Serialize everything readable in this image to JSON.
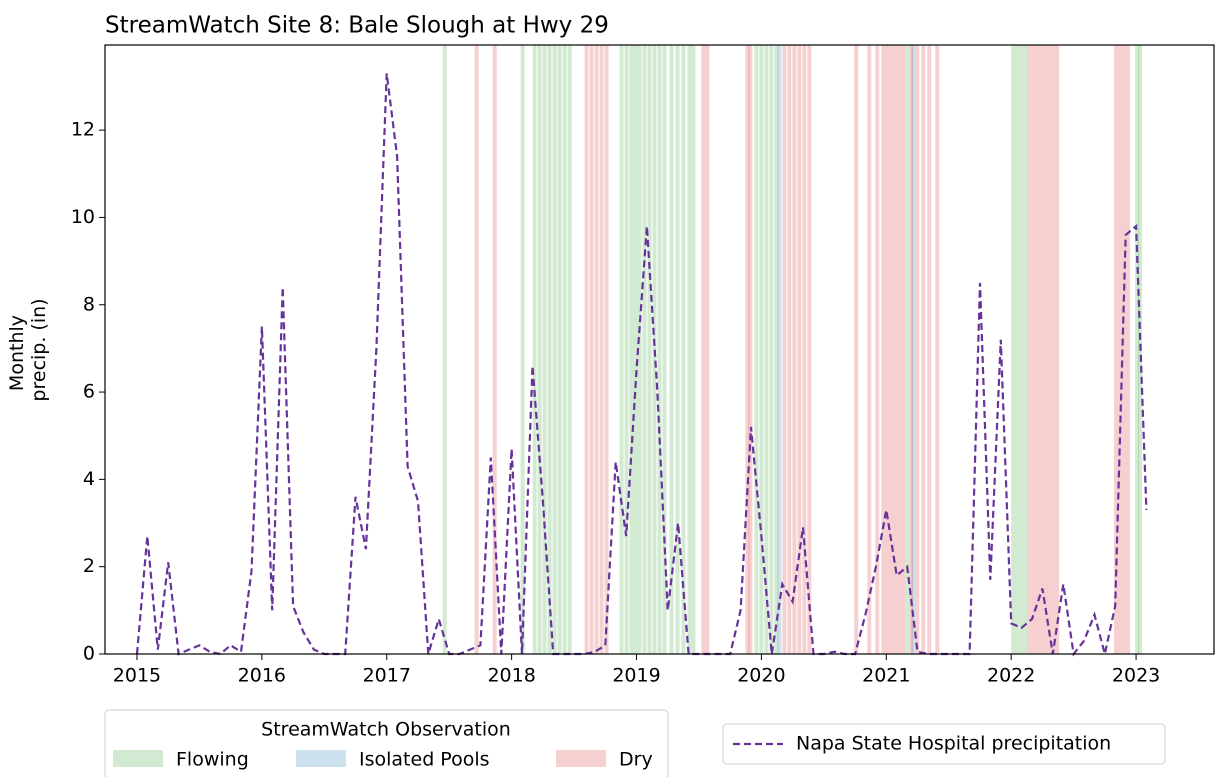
{
  "chart_data": {
    "type": "line",
    "title": "StreamWatch Site 8: Bale Slough at Hwy 29",
    "ylabel": [
      "Monthly",
      "precip. (in)"
    ],
    "xlim": [
      2014.744,
      2023.624
    ],
    "xticks": [
      2015,
      2016,
      2017,
      2018,
      2019,
      2020,
      2021,
      2022,
      2023
    ],
    "ylim": [
      0,
      13.95
    ],
    "yticks": [
      0,
      2,
      4,
      6,
      8,
      10,
      12
    ],
    "series": [
      {
        "name": "Napa State Hospital precipitation",
        "color": "#663399",
        "dashed": true,
        "x": [
          2015.0,
          2015.083,
          2015.167,
          2015.25,
          2015.333,
          2015.417,
          2015.5,
          2015.583,
          2015.667,
          2015.75,
          2015.833,
          2015.917,
          2016.0,
          2016.083,
          2016.167,
          2016.25,
          2016.333,
          2016.417,
          2016.5,
          2016.583,
          2016.667,
          2016.75,
          2016.833,
          2016.917,
          2017.0,
          2017.083,
          2017.167,
          2017.25,
          2017.333,
          2017.417,
          2017.5,
          2017.583,
          2017.667,
          2017.75,
          2017.833,
          2017.917,
          2018.0,
          2018.083,
          2018.167,
          2018.25,
          2018.333,
          2018.417,
          2018.5,
          2018.583,
          2018.667,
          2018.75,
          2018.833,
          2018.917,
          2019.0,
          2019.083,
          2019.167,
          2019.25,
          2019.333,
          2019.417,
          2019.5,
          2019.583,
          2019.667,
          2019.75,
          2019.833,
          2019.917,
          2020.0,
          2020.083,
          2020.167,
          2020.25,
          2020.333,
          2020.417,
          2020.5,
          2020.583,
          2020.667,
          2020.75,
          2020.833,
          2020.917,
          2021.0,
          2021.083,
          2021.167,
          2021.25,
          2021.333,
          2021.417,
          2021.5,
          2021.583,
          2021.667,
          2021.75,
          2021.833,
          2021.917,
          2022.0,
          2022.083,
          2022.167,
          2022.25,
          2022.333,
          2022.417,
          2022.5,
          2022.583,
          2022.667,
          2022.75,
          2022.833,
          2022.917,
          2023.0,
          2023.083
        ],
        "values": [
          0,
          2.7,
          0.1,
          2.1,
          0,
          0.1,
          0.2,
          0.05,
          0,
          0.2,
          0.05,
          1.9,
          7.5,
          1.0,
          8.4,
          1.1,
          0.5,
          0.1,
          0,
          0,
          0,
          3.6,
          2.4,
          7.0,
          13.3,
          11.4,
          4.3,
          3.5,
          0,
          0.8,
          0,
          0,
          0.1,
          0.2,
          4.5,
          0,
          4.7,
          0,
          6.6,
          3.5,
          0,
          0,
          0,
          0,
          0.05,
          0.2,
          4.4,
          2.7,
          6.5,
          9.8,
          6.0,
          1.0,
          3.0,
          0,
          0,
          0,
          0,
          0,
          1.0,
          5.2,
          2.7,
          0,
          1.6,
          1.2,
          2.9,
          0,
          0,
          0.05,
          0,
          0,
          0.9,
          2.0,
          3.3,
          1.8,
          2.0,
          0.05,
          0,
          0,
          0,
          0,
          0,
          8.5,
          1.7,
          7.2,
          0.7,
          0.6,
          0.8,
          1.5,
          0,
          1.6,
          0,
          0.3,
          0.9,
          0,
          1.1,
          9.6,
          9.8,
          3.3
        ]
      }
    ],
    "observations": {
      "title": "StreamWatch Observation",
      "groups": [
        {
          "name": "Flowing",
          "color": "#2ca02c",
          "x": [
            2017.464,
            2018.088,
            2018.184,
            2018.224,
            2018.264,
            2018.304,
            2018.344,
            2018.384,
            2018.424,
            2018.464,
            2018.88,
            2018.92,
            2018.96,
            2018.992,
            2019.024,
            2019.064,
            2019.104,
            2019.144,
            2019.184,
            2019.224,
            2019.28,
            2019.328,
            2019.376,
            2019.424,
            2019.456,
            2019.96,
            2020.0,
            2020.04,
            2020.08,
            2020.12,
            2021.168,
            2022.016,
            2022.048,
            2022.08,
            2022.112,
            2023.008,
            2023.032
          ]
        },
        {
          "name": "Isolated Pools",
          "color": "#1f77b4",
          "x": [
            2020.144,
            2021.216
          ]
        },
        {
          "name": "Dry",
          "color": "#d62728",
          "x": [
            2017.72,
            2017.864,
            2018.6,
            2018.64,
            2018.68,
            2018.72,
            2018.76,
            2019.536,
            2019.568,
            2019.888,
            2019.912,
            2020.184,
            2020.224,
            2020.264,
            2020.304,
            2020.344,
            2020.384,
            2020.76,
            2020.864,
            2020.928,
            2020.976,
            2021.008,
            2021.04,
            2021.072,
            2021.104,
            2021.136,
            2021.2,
            2021.248,
            2021.296,
            2021.344,
            2021.408,
            2022.144,
            2022.176,
            2022.208,
            2022.24,
            2022.272,
            2022.304,
            2022.336,
            2022.368,
            2022.84,
            2022.872,
            2022.904,
            2022.936
          ]
        }
      ]
    }
  }
}
